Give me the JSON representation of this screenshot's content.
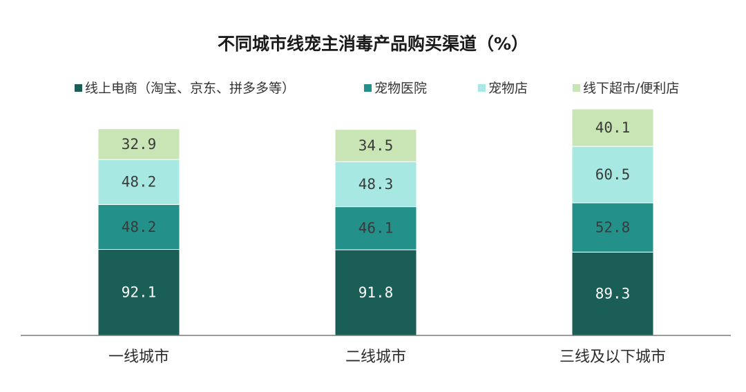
{
  "chart_data": {
    "type": "bar",
    "stacked": true,
    "title": "不同城市线宠主消毒产品购买渠道（%）",
    "xlabel": "",
    "ylabel": "",
    "ylim": [
      0,
      233
    ],
    "grid": false,
    "legend_position": "top",
    "categories": [
      "一线城市",
      "二线城市",
      "三线及以下城市"
    ],
    "series": [
      {
        "name": "线上电商（淘宝、京东、拼多多等）",
        "color": "#1a5e56",
        "label_color": "#ffffff",
        "values": [
          92.1,
          91.8,
          89.3
        ]
      },
      {
        "name": "宠物医院",
        "color": "#23918a",
        "label_color": "#3a3a3a",
        "values": [
          48.2,
          46.1,
          52.8
        ]
      },
      {
        "name": "宠物店",
        "color": "#a8e8e2",
        "label_color": "#3a3a3a",
        "values": [
          48.2,
          48.3,
          60.5
        ]
      },
      {
        "name": "线下超市/便利店",
        "color": "#c9e4b5",
        "label_color": "#3a3a3a",
        "values": [
          32.9,
          34.5,
          40.1
        ]
      }
    ]
  }
}
